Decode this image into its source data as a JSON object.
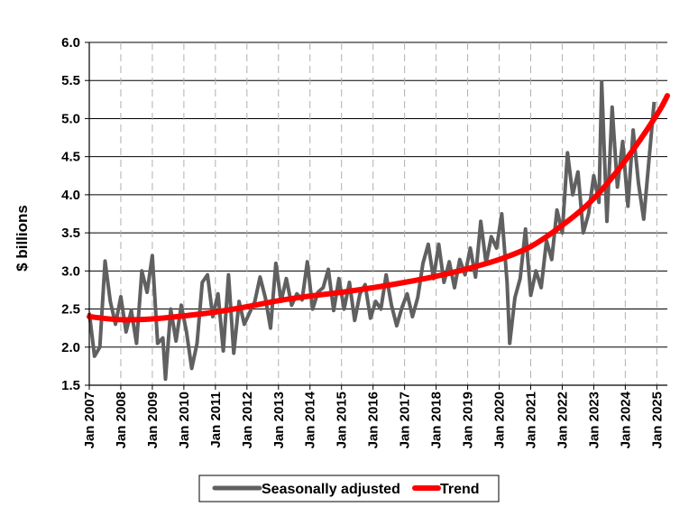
{
  "chart_data": {
    "type": "line",
    "title": "",
    "xlabel": "",
    "ylabel": "$ billions",
    "ylim": [
      1.5,
      6.0
    ],
    "yticks": [
      "1.5",
      "2.0",
      "2.5",
      "3.0",
      "3.5",
      "4.0",
      "4.5",
      "5.0",
      "5.5",
      "6.0"
    ],
    "xticks": [
      "Jan 2007",
      "Jan 2008",
      "Jan 2009",
      "Jan 2010",
      "Jan 2011",
      "Jan 2012",
      "Jan 2013",
      "Jan 2014",
      "Jan 2015",
      "Jan 2016",
      "Jan 2017",
      "Jan 2018",
      "Jan 2019",
      "Jan 2020",
      "Jan 2021",
      "Jan 2022",
      "Jan 2023",
      "Jan 2024",
      "Jan 2025"
    ],
    "xrange": [
      "2007-01",
      "2025-05"
    ],
    "grid": {
      "horizontal": "solid",
      "vertical": "dashed"
    },
    "legend_position": "bottom-center",
    "series": [
      {
        "name": "Seasonally adjusted",
        "color": "#606060",
        "points": [
          [
            "2007-01",
            2.45
          ],
          [
            "2007-03",
            1.88
          ],
          [
            "2007-05",
            2.0
          ],
          [
            "2007-07",
            3.13
          ],
          [
            "2007-09",
            2.6
          ],
          [
            "2007-11",
            2.3
          ],
          [
            "2008-01",
            2.66
          ],
          [
            "2008-03",
            2.2
          ],
          [
            "2008-05",
            2.48
          ],
          [
            "2008-07",
            2.05
          ],
          [
            "2008-09",
            3.0
          ],
          [
            "2008-11",
            2.72
          ],
          [
            "2009-01",
            3.2
          ],
          [
            "2009-03",
            2.05
          ],
          [
            "2009-05",
            2.12
          ],
          [
            "2009-06",
            1.58
          ],
          [
            "2009-08",
            2.5
          ],
          [
            "2009-10",
            2.08
          ],
          [
            "2009-12",
            2.55
          ],
          [
            "2010-02",
            2.2
          ],
          [
            "2010-04",
            1.72
          ],
          [
            "2010-06",
            2.05
          ],
          [
            "2010-08",
            2.85
          ],
          [
            "2010-10",
            2.95
          ],
          [
            "2010-12",
            2.4
          ],
          [
            "2011-02",
            2.7
          ],
          [
            "2011-04",
            1.95
          ],
          [
            "2011-06",
            2.95
          ],
          [
            "2011-08",
            1.92
          ],
          [
            "2011-10",
            2.6
          ],
          [
            "2011-12",
            2.3
          ],
          [
            "2012-02",
            2.45
          ],
          [
            "2012-04",
            2.6
          ],
          [
            "2012-06",
            2.92
          ],
          [
            "2012-08",
            2.65
          ],
          [
            "2012-10",
            2.25
          ],
          [
            "2012-12",
            3.1
          ],
          [
            "2013-02",
            2.6
          ],
          [
            "2013-04",
            2.9
          ],
          [
            "2013-06",
            2.55
          ],
          [
            "2013-08",
            2.7
          ],
          [
            "2013-10",
            2.62
          ],
          [
            "2013-12",
            3.12
          ],
          [
            "2014-02",
            2.5
          ],
          [
            "2014-04",
            2.72
          ],
          [
            "2014-06",
            2.78
          ],
          [
            "2014-08",
            3.02
          ],
          [
            "2014-10",
            2.48
          ],
          [
            "2014-12",
            2.9
          ],
          [
            "2015-02",
            2.5
          ],
          [
            "2015-04",
            2.85
          ],
          [
            "2015-06",
            2.35
          ],
          [
            "2015-08",
            2.7
          ],
          [
            "2015-10",
            2.82
          ],
          [
            "2015-12",
            2.38
          ],
          [
            "2016-02",
            2.6
          ],
          [
            "2016-04",
            2.5
          ],
          [
            "2016-06",
            2.95
          ],
          [
            "2016-08",
            2.55
          ],
          [
            "2016-10",
            2.28
          ],
          [
            "2016-12",
            2.52
          ],
          [
            "2017-02",
            2.7
          ],
          [
            "2017-04",
            2.4
          ],
          [
            "2017-06",
            2.65
          ],
          [
            "2017-08",
            3.1
          ],
          [
            "2017-10",
            3.35
          ],
          [
            "2017-12",
            2.9
          ],
          [
            "2018-02",
            3.35
          ],
          [
            "2018-04",
            2.85
          ],
          [
            "2018-06",
            3.12
          ],
          [
            "2018-08",
            2.78
          ],
          [
            "2018-10",
            3.15
          ],
          [
            "2018-12",
            2.95
          ],
          [
            "2019-02",
            3.3
          ],
          [
            "2019-04",
            2.92
          ],
          [
            "2019-06",
            3.65
          ],
          [
            "2019-08",
            3.1
          ],
          [
            "2019-10",
            3.45
          ],
          [
            "2019-12",
            3.3
          ],
          [
            "2020-02",
            3.75
          ],
          [
            "2020-04",
            2.85
          ],
          [
            "2020-05",
            2.05
          ],
          [
            "2020-07",
            2.65
          ],
          [
            "2020-09",
            2.9
          ],
          [
            "2020-11",
            3.55
          ],
          [
            "2021-01",
            2.68
          ],
          [
            "2021-03",
            3.0
          ],
          [
            "2021-05",
            2.78
          ],
          [
            "2021-07",
            3.4
          ],
          [
            "2021-09",
            3.15
          ],
          [
            "2021-11",
            3.8
          ],
          [
            "2022-01",
            3.5
          ],
          [
            "2022-03",
            4.55
          ],
          [
            "2022-05",
            4.0
          ],
          [
            "2022-07",
            4.3
          ],
          [
            "2022-09",
            3.5
          ],
          [
            "2022-11",
            3.75
          ],
          [
            "2023-01",
            4.25
          ],
          [
            "2023-03",
            3.9
          ],
          [
            "2023-04",
            5.48
          ],
          [
            "2023-06",
            3.65
          ],
          [
            "2023-08",
            5.15
          ],
          [
            "2023-10",
            4.1
          ],
          [
            "2023-12",
            4.7
          ],
          [
            "2024-02",
            3.85
          ],
          [
            "2024-04",
            4.85
          ],
          [
            "2024-06",
            4.15
          ],
          [
            "2024-08",
            3.68
          ],
          [
            "2024-10",
            4.45
          ],
          [
            "2024-12",
            5.22
          ]
        ]
      },
      {
        "name": "Trend",
        "color": "#ff0000",
        "points": [
          [
            "2007-01",
            2.4
          ],
          [
            "2008-01",
            2.36
          ],
          [
            "2009-01",
            2.37
          ],
          [
            "2010-01",
            2.41
          ],
          [
            "2011-01",
            2.46
          ],
          [
            "2012-01",
            2.53
          ],
          [
            "2013-01",
            2.61
          ],
          [
            "2014-01",
            2.67
          ],
          [
            "2015-01",
            2.72
          ],
          [
            "2016-01",
            2.78
          ],
          [
            "2017-01",
            2.85
          ],
          [
            "2018-01",
            2.93
          ],
          [
            "2019-01",
            3.03
          ],
          [
            "2020-01",
            3.15
          ],
          [
            "2021-01",
            3.32
          ],
          [
            "2022-01",
            3.6
          ],
          [
            "2023-01",
            3.95
          ],
          [
            "2024-01",
            4.45
          ],
          [
            "2025-01",
            5.05
          ],
          [
            "2025-05",
            5.3
          ]
        ]
      }
    ]
  }
}
